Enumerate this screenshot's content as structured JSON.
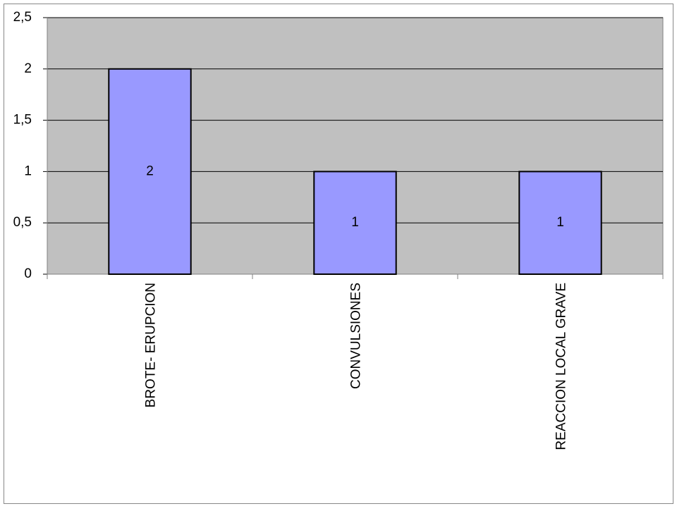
{
  "chart_data": {
    "type": "bar",
    "categories": [
      "BROTE- ERUPCION",
      "CONVULSIONES",
      "REACCION LOCAL GRAVE"
    ],
    "values": [
      2,
      1,
      1
    ],
    "color": "#9999ff",
    "ylim": [
      0,
      2.5
    ],
    "yticks": [
      0,
      {
        "value": 0.5,
        "label": "0,5"
      },
      1,
      {
        "value": 1.5,
        "label": "1,5"
      },
      2,
      {
        "value": 2.5,
        "label": "2,5"
      }
    ],
    "grid": true
  }
}
